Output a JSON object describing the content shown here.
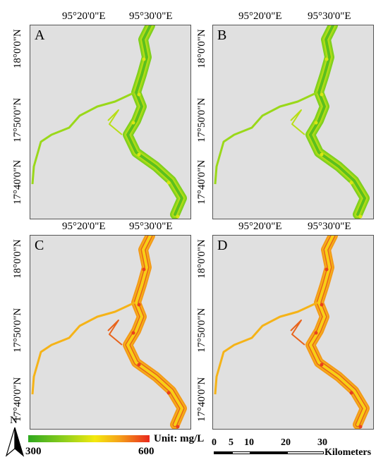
{
  "panels": [
    {
      "letter": "A",
      "palette": "green"
    },
    {
      "letter": "B",
      "palette": "green"
    },
    {
      "letter": "C",
      "palette": "orange"
    },
    {
      "letter": "D",
      "palette": "orange"
    }
  ],
  "lon_labels": [
    "95°20'0\"E",
    "95°30'0\"E"
  ],
  "lat_labels": [
    "18°0'0\"N",
    "17°50'0\"N",
    "17°40'0\"N"
  ],
  "legend": {
    "min": "300",
    "max": "600",
    "unit": "Unit: mg/L",
    "colors": [
      "#2fa81f",
      "#8fcf1c",
      "#f4e90e",
      "#f5a21a",
      "#e9281d"
    ]
  },
  "north_arrow": {
    "label": "N"
  },
  "scale_bar": {
    "ticks": [
      "0",
      "5",
      "10",
      "20",
      "30"
    ],
    "unit": "Kilometers"
  }
}
